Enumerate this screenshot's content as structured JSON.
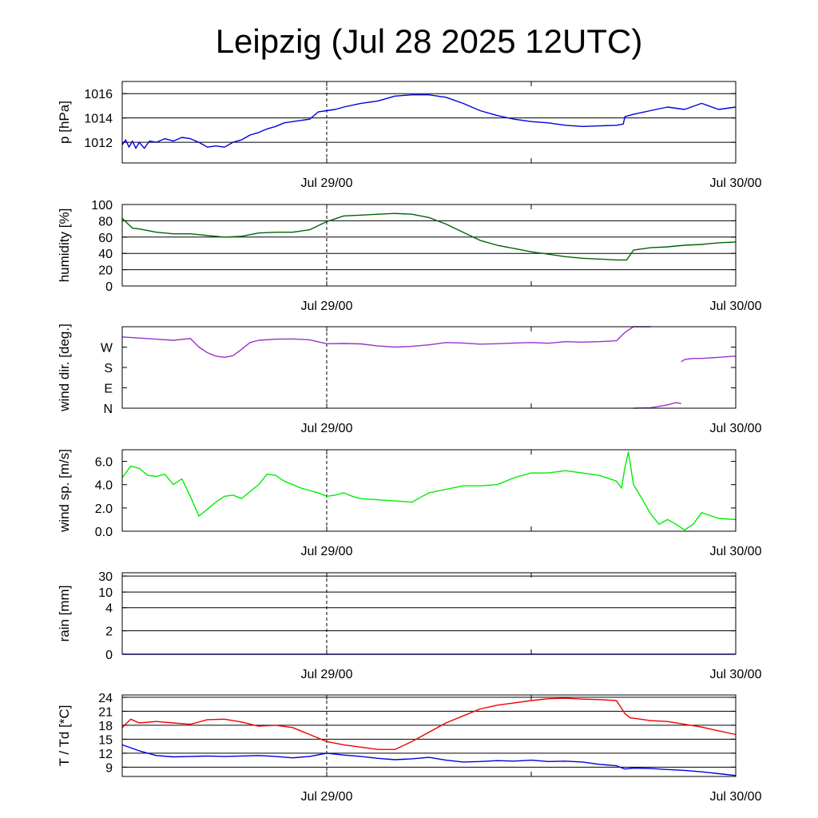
{
  "title": "Leipzig (Jul 28 2025 12UTC)",
  "chart_data": [
    {
      "type": "line",
      "ylabel": "p [hPa]",
      "x_range_hours": [
        0,
        36
      ],
      "ylim": [
        1010.3,
        1017.0
      ],
      "yticks": [
        1012,
        1014,
        1016
      ],
      "gridlines": [
        1012,
        1014,
        1016
      ],
      "xticks": [
        {
          "hour": 12,
          "label": "Jul 29/00"
        },
        {
          "hour": 36,
          "label": "Jul 30/00"
        }
      ],
      "series": [
        {
          "color": "#0000dd",
          "x": [
            0,
            0.2,
            0.4,
            0.6,
            0.8,
            1,
            1.3,
            1.6,
            2,
            2.5,
            3,
            3.5,
            4,
            4.5,
            5,
            5.5,
            6,
            6.5,
            7,
            7.5,
            8,
            8.5,
            9,
            9.5,
            10,
            10.5,
            11,
            11.5,
            12,
            12.5,
            13,
            14,
            15,
            16,
            17,
            18,
            19,
            20,
            21,
            22,
            23,
            24,
            25,
            26,
            27,
            28,
            29,
            29.4,
            29.5,
            30,
            31,
            32,
            33,
            34,
            35,
            36
          ],
          "y": [
            1011.8,
            1012.2,
            1011.6,
            1012.1,
            1011.5,
            1012.0,
            1011.5,
            1012.1,
            1012.0,
            1012.3,
            1012.1,
            1012.4,
            1012.3,
            1012.0,
            1011.6,
            1011.7,
            1011.6,
            1012.0,
            1012.2,
            1012.6,
            1012.8,
            1013.1,
            1013.3,
            1013.6,
            1013.7,
            1013.8,
            1013.9,
            1014.5,
            1014.6,
            1014.7,
            1014.9,
            1015.2,
            1015.4,
            1015.8,
            1015.9,
            1015.9,
            1015.7,
            1015.2,
            1014.6,
            1014.2,
            1013.9,
            1013.7,
            1013.6,
            1013.4,
            1013.3,
            1013.35,
            1013.4,
            1013.5,
            1014.1,
            1014.3,
            1014.6,
            1014.9,
            1014.7,
            1015.2,
            1014.7,
            1014.9
          ]
        }
      ]
    },
    {
      "type": "line",
      "ylabel": "humidity [%]",
      "x_range_hours": [
        0,
        36
      ],
      "ylim": [
        0,
        100
      ],
      "yticks": [
        0,
        20,
        40,
        60,
        80,
        100
      ],
      "gridlines": [
        20,
        40,
        60,
        80
      ],
      "xticks": [
        {
          "hour": 12,
          "label": "Jul 29/00"
        },
        {
          "hour": 36,
          "label": "Jul 30/00"
        }
      ],
      "series": [
        {
          "color": "#006400",
          "x": [
            0,
            0.3,
            0.6,
            1,
            2,
            3,
            4,
            5,
            6,
            7,
            8,
            9,
            10,
            11,
            12,
            13,
            14,
            15,
            16,
            17,
            18,
            19,
            20,
            21,
            22,
            23,
            24,
            25,
            26,
            27,
            28,
            29,
            29.3,
            29.6,
            30,
            31,
            32,
            33,
            34,
            35,
            36
          ],
          "y": [
            83,
            77,
            71,
            70,
            66,
            64,
            64,
            62,
            60,
            61,
            65,
            66,
            66,
            69,
            79,
            86,
            87,
            88,
            89,
            88,
            84,
            76,
            66,
            56,
            50,
            46,
            42,
            39,
            36,
            34,
            33,
            32,
            32,
            32,
            44,
            47,
            48,
            50,
            51,
            53,
            54
          ]
        }
      ]
    },
    {
      "type": "line",
      "ylabel": "wind dir. [deg.]",
      "x_range_hours": [
        0,
        36
      ],
      "ylim": [
        0,
        360
      ],
      "yticks": [
        {
          "value": 0,
          "label": "N"
        },
        {
          "value": 90,
          "label": "E"
        },
        {
          "value": 180,
          "label": "S"
        },
        {
          "value": 270,
          "label": "W"
        }
      ],
      "xticks": [
        {
          "hour": 12,
          "label": "Jul 29/00"
        },
        {
          "hour": 36,
          "label": "Jul 30/00"
        }
      ],
      "series": [
        {
          "color": "#9932cc",
          "x": [
            0,
            1,
            2,
            3,
            4,
            4.5,
            5,
            5.5,
            6,
            6.5,
            7,
            7.5,
            8,
            9,
            10,
            11,
            12,
            13,
            14,
            15,
            16,
            17,
            18,
            19,
            20,
            21,
            22,
            23,
            24,
            25,
            26,
            27,
            28,
            29,
            29.5,
            30,
            31
          ],
          "y": [
            315,
            310,
            305,
            300,
            308,
            270,
            245,
            230,
            225,
            232,
            260,
            290,
            300,
            305,
            306,
            302,
            285,
            286,
            284,
            275,
            270,
            273,
            280,
            290,
            288,
            283,
            285,
            288,
            290,
            287,
            294,
            292,
            294,
            298,
            335,
            360,
            360
          ]
        },
        {
          "color": "#9932cc",
          "x": [
            30,
            31,
            31.5,
            32,
            32.5,
            32.8
          ],
          "y": [
            0,
            2,
            8,
            15,
            25,
            20
          ]
        },
        {
          "color": "#9932cc",
          "x": [
            32.8,
            33,
            33.5,
            34,
            35,
            36
          ],
          "y": [
            205,
            215,
            220,
            220,
            225,
            230
          ]
        }
      ]
    },
    {
      "type": "line",
      "ylabel": "wind sp. [m/s]",
      "x_range_hours": [
        0,
        36
      ],
      "ylim": [
        0,
        7
      ],
      "yticks": [
        0,
        2,
        4,
        6
      ],
      "yticklabels": [
        "0.0",
        "2.0",
        "4.0",
        "6.0"
      ],
      "xticks": [
        {
          "hour": 12,
          "label": "Jul 29/00"
        },
        {
          "hour": 36,
          "label": "Jul 30/00"
        }
      ],
      "series": [
        {
          "color": "#00ee00",
          "x": [
            0,
            0.5,
            1,
            1.5,
            2,
            2.5,
            3,
            3.5,
            4,
            4.5,
            5,
            5.5,
            6,
            6.5,
            7,
            7.5,
            8,
            8.5,
            9,
            9.5,
            10,
            10.5,
            11,
            11.5,
            12,
            12.5,
            13,
            13.5,
            14,
            15,
            16,
            17,
            17.5,
            18,
            19,
            20,
            21,
            22,
            23,
            24,
            25,
            26,
            27,
            28,
            29,
            29.3,
            29.5,
            29.7,
            30,
            30.5,
            31,
            31.5,
            32,
            32.5,
            33,
            33.5,
            34,
            35,
            36
          ],
          "y": [
            4.6,
            5.6,
            5.4,
            4.8,
            4.7,
            4.9,
            4.0,
            4.5,
            3.0,
            1.3,
            1.9,
            2.5,
            3.0,
            3.1,
            2.8,
            3.4,
            4.0,
            4.9,
            4.8,
            4.3,
            4.0,
            3.7,
            3.5,
            3.3,
            3.0,
            3.1,
            3.3,
            3.0,
            2.8,
            2.7,
            2.6,
            2.5,
            2.9,
            3.3,
            3.6,
            3.9,
            3.9,
            4.0,
            4.6,
            5.0,
            5.0,
            5.2,
            5.0,
            4.8,
            4.3,
            3.7,
            5.5,
            6.8,
            4.0,
            2.8,
            1.5,
            0.6,
            1.0,
            0.6,
            0.1,
            0.6,
            1.6,
            1.1,
            1.0
          ]
        }
      ]
    },
    {
      "type": "line",
      "ylabel": "rain [mm]",
      "x_range_hours": [
        0,
        36
      ],
      "yticks": [
        0,
        2,
        4,
        10,
        30
      ],
      "gridlines": [
        2,
        4,
        10,
        30
      ],
      "scale_note": "non-linear axis",
      "xticks": [
        {
          "hour": 12,
          "label": "Jul 29/00"
        },
        {
          "hour": 36,
          "label": "Jul 30/00"
        }
      ],
      "series": [
        {
          "color": "#0000dd",
          "x": [
            0,
            36
          ],
          "y": [
            0,
            0
          ]
        }
      ]
    },
    {
      "type": "line",
      "ylabel": "T / Td [*C]",
      "x_range_hours": [
        0,
        36
      ],
      "ylim": [
        7,
        24.5
      ],
      "yticks": [
        9,
        12,
        15,
        18,
        21,
        24
      ],
      "gridlines": [
        9,
        12,
        15,
        18,
        21,
        24
      ],
      "xticks": [
        {
          "hour": 12,
          "label": "Jul 29/00"
        },
        {
          "hour": 36,
          "label": "Jul 30/00"
        }
      ],
      "series": [
        {
          "color": "#ee0000",
          "x": [
            0,
            0.5,
            1,
            2,
            3,
            4,
            5,
            6,
            7,
            8,
            9,
            10,
            11,
            12,
            13,
            14,
            15,
            16,
            17,
            18,
            19,
            20,
            21,
            22,
            23,
            24,
            25,
            26,
            27,
            28,
            29,
            29.5,
            29.8,
            30,
            31,
            32,
            33,
            34,
            35,
            36
          ],
          "y": [
            17.5,
            19.3,
            18.5,
            18.8,
            18.5,
            18.2,
            19.2,
            19.3,
            18.7,
            17.8,
            18.0,
            17.5,
            16.0,
            14.5,
            13.8,
            13.3,
            12.8,
            12.8,
            14.5,
            16.5,
            18.5,
            20.0,
            21.5,
            22.3,
            22.8,
            23.3,
            23.7,
            23.8,
            23.6,
            23.5,
            23.3,
            20.5,
            19.6,
            19.5,
            19.0,
            18.8,
            18.2,
            17.6,
            16.8,
            16.0
          ]
        },
        {
          "color": "#0000dd",
          "x": [
            0,
            1,
            2,
            3,
            4,
            5,
            6,
            7,
            8,
            9,
            10,
            11,
            12,
            13,
            14,
            15,
            16,
            17,
            18,
            19,
            20,
            21,
            22,
            23,
            24,
            25,
            26,
            27,
            28,
            29,
            29.5,
            30,
            31,
            32,
            33,
            34,
            35,
            36
          ],
          "y": [
            13.8,
            12.5,
            11.5,
            11.2,
            11.3,
            11.4,
            11.3,
            11.4,
            11.5,
            11.3,
            11.0,
            11.3,
            12.0,
            11.6,
            11.3,
            10.9,
            10.6,
            10.8,
            11.1,
            10.5,
            10.1,
            10.2,
            10.4,
            10.3,
            10.5,
            10.2,
            10.3,
            10.1,
            9.6,
            9.3,
            8.6,
            8.8,
            8.7,
            8.5,
            8.3,
            8.0,
            7.6,
            7.2
          ]
        }
      ]
    }
  ]
}
